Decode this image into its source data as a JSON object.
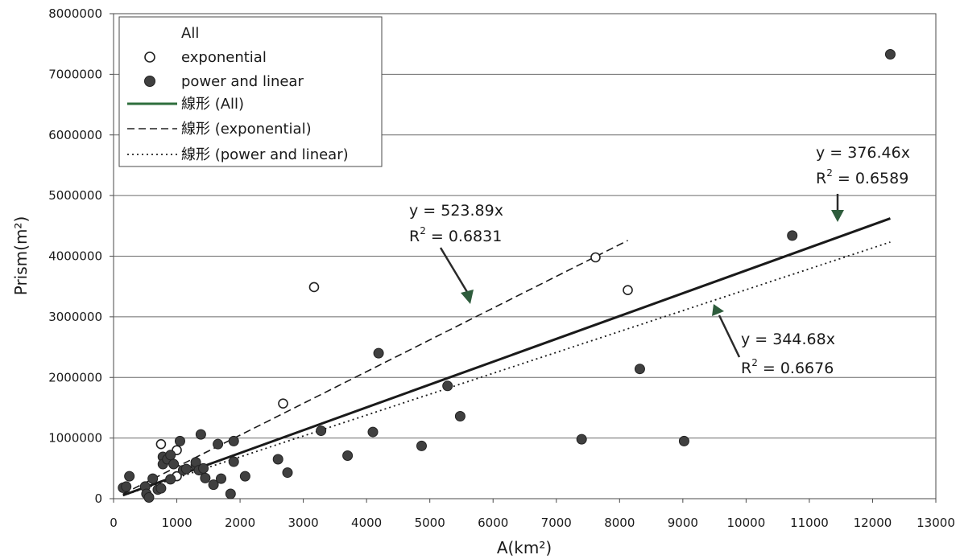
{
  "chart_data": {
    "type": "scatter",
    "xlabel": "A(km²)",
    "ylabel": "Prism(m²)",
    "xlim": [
      0,
      13000
    ],
    "ylim": [
      0,
      8000000
    ],
    "x_ticks": [
      "0",
      "1000",
      "2000",
      "3000",
      "4000",
      "5000",
      "6000",
      "7000",
      "8000",
      "9000",
      "10000",
      "11000",
      "12000",
      "13000"
    ],
    "y_ticks": [
      "0",
      "1000000",
      "2000000",
      "3000000",
      "4000000",
      "5000000",
      "6000000",
      "7000000",
      "8000000"
    ],
    "grid": "horizontal",
    "legend_position": "top-left",
    "legend": {
      "title": "All",
      "items": [
        "exponential",
        "power and linear",
        "線形 (All)",
        "線形 (exponential)",
        "線形 (power and linear)"
      ]
    },
    "series": [
      {
        "name": "exponential",
        "marker": "open-circle",
        "points": [
          [
            750,
            900000
          ],
          [
            1000,
            800000
          ],
          [
            1000,
            370000
          ],
          [
            2680,
            1570000
          ],
          [
            3170,
            3490000
          ],
          [
            7620,
            3980000
          ],
          [
            8130,
            3440000
          ]
        ]
      },
      {
        "name": "power and linear",
        "marker": "filled-circle",
        "color": "#404040",
        "points": [
          [
            150,
            180000
          ],
          [
            200,
            200000
          ],
          [
            250,
            370000
          ],
          [
            500,
            200000
          ],
          [
            520,
            80000
          ],
          [
            560,
            20000
          ],
          [
            620,
            330000
          ],
          [
            700,
            150000
          ],
          [
            750,
            170000
          ],
          [
            780,
            690000
          ],
          [
            780,
            570000
          ],
          [
            850,
            650000
          ],
          [
            900,
            720000
          ],
          [
            900,
            320000
          ],
          [
            950,
            570000
          ],
          [
            1050,
            950000
          ],
          [
            1100,
            470000
          ],
          [
            1150,
            490000
          ],
          [
            1300,
            550000
          ],
          [
            1300,
            600000
          ],
          [
            1350,
            470000
          ],
          [
            1380,
            1060000
          ],
          [
            1420,
            500000
          ],
          [
            1450,
            340000
          ],
          [
            1580,
            230000
          ],
          [
            1650,
            900000
          ],
          [
            1700,
            330000
          ],
          [
            1850,
            80000
          ],
          [
            1900,
            950000
          ],
          [
            1900,
            610000
          ],
          [
            2080,
            370000
          ],
          [
            2600,
            650000
          ],
          [
            2750,
            430000
          ],
          [
            3280,
            1120000
          ],
          [
            3700,
            710000
          ],
          [
            4100,
            1100000
          ],
          [
            4190,
            2400000
          ],
          [
            4870,
            870000
          ],
          [
            5280,
            1860000
          ],
          [
            5480,
            1360000
          ],
          [
            7400,
            980000
          ],
          [
            8320,
            2140000
          ],
          [
            9020,
            950000
          ],
          [
            10730,
            4340000
          ],
          [
            12280,
            7330000
          ]
        ]
      }
    ],
    "trendlines": [
      {
        "name": "線形 (All)",
        "style": "solid",
        "slope": 376.46,
        "x_range": [
          150,
          12280
        ]
      },
      {
        "name": "線形 (exponential)",
        "style": "dashed",
        "slope": 523.89,
        "x_range": [
          150,
          8130
        ]
      },
      {
        "name": "線形 (power and linear)",
        "style": "dotted",
        "slope": 344.68,
        "x_range": [
          150,
          12280
        ]
      }
    ],
    "annotations": [
      {
        "eq": "y = 523.89x",
        "r2_prefix": "R",
        "r2_sup": "2",
        "r2_value": " = 0.6831"
      },
      {
        "eq": "y = 376.46x",
        "r2_prefix": "R",
        "r2_sup": "2",
        "r2_value": " = 0.6589"
      },
      {
        "eq": "y = 344.68x",
        "r2_prefix": "R",
        "r2_sup": "2",
        "r2_value": " = 0.6676"
      }
    ],
    "colors": {
      "ylabel": "#2e7040",
      "legend_all_line": "#2e6e3c",
      "arrow_tip": "#2e5c3c"
    }
  }
}
